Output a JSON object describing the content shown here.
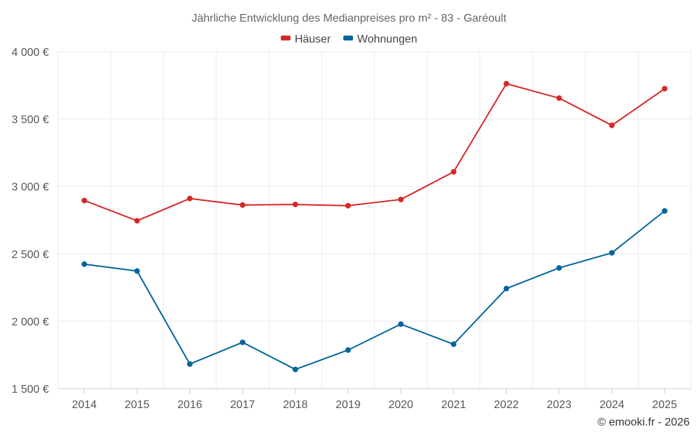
{
  "chart_data": {
    "type": "line",
    "title": "Jährliche Entwicklung des Medianpreises pro m² - 83 - Garéoult",
    "categories": [
      "2014",
      "2015",
      "2016",
      "2017",
      "2018",
      "2019",
      "2020",
      "2021",
      "2022",
      "2023",
      "2024",
      "2025"
    ],
    "series": [
      {
        "name": "Häuser",
        "color": "#d62728",
        "values": [
          2895,
          2745,
          2910,
          2862,
          2866,
          2857,
          2903,
          3108,
          3762,
          3655,
          3453,
          3725
        ]
      },
      {
        "name": "Wohnungen",
        "color": "#00649c",
        "values": [
          2423,
          2372,
          1682,
          1843,
          1642,
          1786,
          1978,
          1829,
          2242,
          2395,
          2507,
          2818
        ]
      }
    ],
    "ylim": [
      1500,
      4000
    ],
    "yticks": [
      1500,
      2000,
      2500,
      3000,
      3500,
      4000
    ],
    "ytick_labels": [
      "1 500 €",
      "2 000 €",
      "2 500 €",
      "3 000 €",
      "3 500 €",
      "4 000 €"
    ],
    "xlabel": "",
    "ylabel": "",
    "legend_position": "top-center",
    "grid": true
  },
  "credit": "© emooki.fr - 2026"
}
